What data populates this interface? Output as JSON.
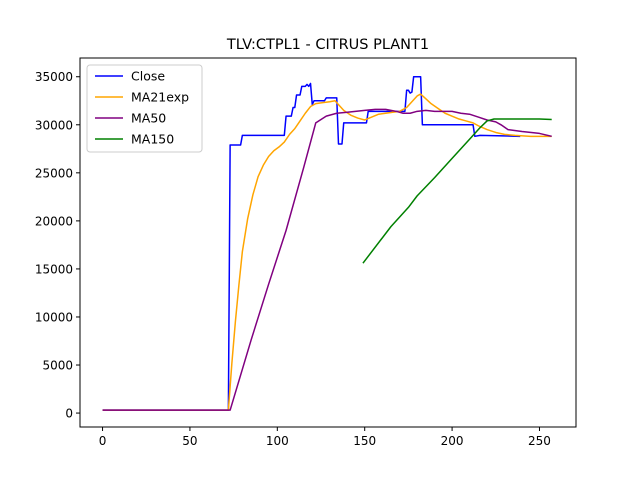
{
  "chart_data": {
    "type": "line",
    "title": "TLV:CTPL1 - CITRUS PLANT1",
    "xlabel": "",
    "ylabel": "",
    "xlim": [
      -12.9,
      270.9
    ],
    "ylim": [
      -1450,
      36950
    ],
    "x_ticks": [
      0,
      50,
      100,
      150,
      200,
      250
    ],
    "y_ticks": [
      0,
      5000,
      10000,
      15000,
      20000,
      25000,
      30000,
      35000
    ],
    "grid": false,
    "legend_position": "upper-left",
    "series": [
      {
        "name": "Close",
        "color": "#0000ff",
        "points": [
          [
            0,
            300
          ],
          [
            72,
            300
          ],
          [
            73,
            27900
          ],
          [
            79,
            27900
          ],
          [
            80,
            28900
          ],
          [
            104,
            28900
          ],
          [
            105,
            30900
          ],
          [
            108,
            30900
          ],
          [
            109,
            31800
          ],
          [
            110,
            31800
          ],
          [
            111,
            33100
          ],
          [
            113,
            33100
          ],
          [
            114,
            34000
          ],
          [
            116,
            34000
          ],
          [
            117,
            34200
          ],
          [
            118,
            34000
          ],
          [
            119,
            34300
          ],
          [
            120,
            32100
          ],
          [
            121,
            32500
          ],
          [
            127,
            32500
          ],
          [
            128,
            32800
          ],
          [
            134,
            32800
          ],
          [
            135,
            28000
          ],
          [
            137,
            28000
          ],
          [
            138,
            30200
          ],
          [
            151,
            30200
          ],
          [
            152,
            31400
          ],
          [
            173,
            31400
          ],
          [
            174,
            33600
          ],
          [
            175,
            33600
          ],
          [
            176,
            33300
          ],
          [
            177,
            33400
          ],
          [
            178,
            35000
          ],
          [
            182,
            35000
          ],
          [
            183,
            30000
          ],
          [
            212,
            30000
          ],
          [
            213,
            28800
          ],
          [
            216,
            28900
          ],
          [
            239,
            28800
          ]
        ]
      },
      {
        "name": "MA21exp",
        "color": "#ffa500",
        "points": [
          [
            0,
            300
          ],
          [
            72,
            300
          ],
          [
            74,
            5200
          ],
          [
            76,
            9500
          ],
          [
            78,
            13300
          ],
          [
            80,
            16800
          ],
          [
            83,
            20200
          ],
          [
            86,
            22700
          ],
          [
            89,
            24600
          ],
          [
            92,
            25800
          ],
          [
            95,
            26700
          ],
          [
            98,
            27300
          ],
          [
            101,
            27700
          ],
          [
            104,
            28200
          ],
          [
            107,
            29000
          ],
          [
            110,
            29600
          ],
          [
            113,
            30400
          ],
          [
            116,
            31200
          ],
          [
            119,
            31900
          ],
          [
            122,
            32200
          ],
          [
            126,
            32300
          ],
          [
            130,
            32400
          ],
          [
            133,
            32500
          ],
          [
            135,
            32100
          ],
          [
            138,
            31500
          ],
          [
            142,
            31000
          ],
          [
            146,
            30700
          ],
          [
            150,
            30500
          ],
          [
            154,
            30800
          ],
          [
            158,
            31100
          ],
          [
            162,
            31200
          ],
          [
            166,
            31300
          ],
          [
            170,
            31400
          ],
          [
            174,
            31800
          ],
          [
            177,
            32400
          ],
          [
            180,
            33000
          ],
          [
            182,
            33200
          ],
          [
            185,
            32700
          ],
          [
            188,
            32200
          ],
          [
            192,
            31700
          ],
          [
            196,
            31200
          ],
          [
            200,
            30900
          ],
          [
            204,
            30600
          ],
          [
            208,
            30400
          ],
          [
            212,
            30200
          ],
          [
            215,
            29900
          ],
          [
            220,
            29500
          ],
          [
            225,
            29200
          ],
          [
            230,
            29000
          ],
          [
            236,
            28900
          ],
          [
            245,
            28800
          ],
          [
            257,
            28800
          ]
        ]
      },
      {
        "name": "MA50",
        "color": "#800080",
        "points": [
          [
            0,
            300
          ],
          [
            73,
            300
          ],
          [
            85,
            7600
          ],
          [
            95,
            13400
          ],
          [
            105,
            19000
          ],
          [
            115,
            25500
          ],
          [
            122,
            30200
          ],
          [
            128,
            30900
          ],
          [
            134,
            31200
          ],
          [
            140,
            31300
          ],
          [
            150,
            31500
          ],
          [
            156,
            31600
          ],
          [
            162,
            31600
          ],
          [
            168,
            31400
          ],
          [
            172,
            31200
          ],
          [
            176,
            31200
          ],
          [
            180,
            31400
          ],
          [
            185,
            31500
          ],
          [
            190,
            31400
          ],
          [
            195,
            31400
          ],
          [
            200,
            31400
          ],
          [
            205,
            31200
          ],
          [
            210,
            31100
          ],
          [
            215,
            30800
          ],
          [
            220,
            30500
          ],
          [
            225,
            30300
          ],
          [
            228,
            30000
          ],
          [
            232,
            29500
          ],
          [
            240,
            29300
          ],
          [
            250,
            29100
          ],
          [
            257,
            28800
          ]
        ]
      },
      {
        "name": "MA150",
        "color": "#008000",
        "points": [
          [
            149,
            15600
          ],
          [
            165,
            19400
          ],
          [
            175,
            21400
          ],
          [
            180,
            22600
          ],
          [
            190,
            24500
          ],
          [
            200,
            26500
          ],
          [
            210,
            28500
          ],
          [
            216,
            29700
          ],
          [
            220,
            30400
          ],
          [
            224,
            30600
          ],
          [
            230,
            30600
          ],
          [
            240,
            30600
          ],
          [
            250,
            30600
          ],
          [
            257,
            30550
          ]
        ]
      }
    ]
  }
}
